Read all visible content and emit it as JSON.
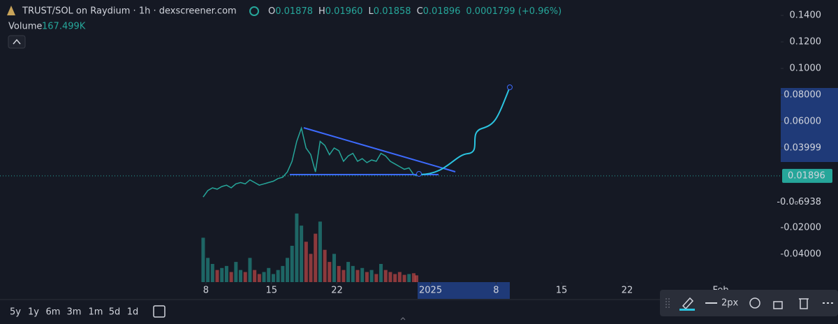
{
  "chart_data": {
    "type": "line",
    "title": "TRUST/SOL on Raydium · 1h · dexscreener.com",
    "ohlc_labels": [
      "O",
      "H",
      "L",
      "C"
    ],
    "ohlc_values": [
      0.01878,
      0.0196,
      0.01858,
      0.01896
    ],
    "ohlc_value_labels": [
      "0.01878",
      "0.01960",
      "0.01858",
      "0.01896"
    ],
    "change": "0.0001799 (+0.96%)",
    "volume_label": "Volume",
    "volume_last": "167.499K",
    "color": "#26a69a",
    "down_color": "#ef5350",
    "x": [
      7.7,
      8.2,
      8.7,
      9.2,
      9.7,
      10.2,
      10.7,
      11.2,
      11.7,
      12.2,
      12.7,
      13.2,
      13.7,
      14.2,
      14.7,
      15.2,
      15.7,
      16.2,
      16.7,
      17.2,
      17.7,
      18.2,
      18.7,
      19.2,
      19.7,
      20.2,
      20.7,
      21.2,
      21.7,
      22.2,
      22.7,
      23.2,
      23.7,
      24.2,
      24.7,
      25.2,
      25.7,
      26.2,
      26.7,
      27.2,
      27.7,
      28.2,
      28.7,
      29.2,
      29.7,
      30.2,
      30.5
    ],
    "values": [
      0.003,
      0.008,
      0.01,
      0.009,
      0.011,
      0.012,
      0.01,
      0.013,
      0.014,
      0.013,
      0.016,
      0.014,
      0.012,
      0.013,
      0.014,
      0.015,
      0.017,
      0.018,
      0.022,
      0.03,
      0.045,
      0.055,
      0.04,
      0.035,
      0.022,
      0.045,
      0.042,
      0.035,
      0.04,
      0.038,
      0.03,
      0.034,
      0.036,
      0.03,
      0.032,
      0.029,
      0.031,
      0.03,
      0.036,
      0.034,
      0.03,
      0.028,
      0.026,
      0.024,
      0.025,
      0.02,
      0.01896
    ],
    "volume": [
      1100,
      600,
      450,
      300,
      350,
      400,
      250,
      500,
      300,
      250,
      600,
      300,
      200,
      250,
      350,
      200,
      300,
      400,
      600,
      900,
      1700,
      1400,
      1000,
      700,
      1200,
      1500,
      800,
      500,
      700,
      400,
      300,
      500,
      400,
      300,
      350,
      250,
      300,
      200,
      450,
      300,
      250,
      200,
      250,
      180,
      200,
      220,
      167.499
    ],
    "volume_ylim": [
      0,
      1800
    ],
    "xlim": [
      -14.01,
      69.42
    ],
    "xticks": [
      8,
      15,
      22,
      {
        "value": 32,
        "label": "2025"
      },
      {
        "value": 39,
        "label": "8"
      },
      {
        "value": 46,
        "label": "15"
      },
      {
        "value": 53,
        "label": "22"
      },
      {
        "value": 63,
        "label": "Feb"
      }
    ],
    "ylim": [
      -0.0611,
      0.1516
    ],
    "yticks": [
      {
        "value": 0.14,
        "label": "0.1400"
      },
      {
        "value": 0.12,
        "label": "0.1200"
      },
      {
        "value": 0.1,
        "label": "0.1000"
      },
      {
        "value": 0.08,
        "label": "0.08000"
      },
      {
        "value": 0.06,
        "label": "0.06000"
      },
      0.03999,
      {
        "value": -0.0006938,
        "label": "-0.0₀6938"
      },
      {
        "value": -0.02,
        "label": "-0.02000"
      },
      {
        "value": -0.04,
        "label": "-0.04000"
      }
    ],
    "last_price": 0.01896,
    "grid": false,
    "timeframes": [
      "5y",
      "1y",
      "6m",
      "3m",
      "1m",
      "5d",
      "1d"
    ],
    "line_width": "2px"
  }
}
